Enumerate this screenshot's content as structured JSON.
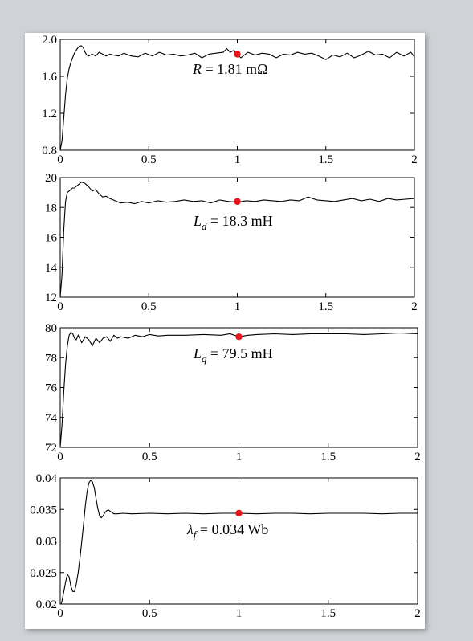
{
  "chart_data": [
    {
      "type": "line",
      "xlim": [
        0,
        2
      ],
      "ylim": [
        0.8,
        2.0
      ],
      "xticks": [
        "0",
        "0.5",
        "1",
        "1.5",
        "2"
      ],
      "yticks": [
        "0.8",
        "1.2",
        "1.6",
        "2.0"
      ],
      "yticks_values": [
        0.8,
        1.2,
        1.6,
        2.0
      ],
      "annotation": {
        "symbol": "R",
        "subscript": "",
        "text": " = 1.81 mΩ"
      },
      "marker": {
        "x": 1.0,
        "y": 1.84
      },
      "series_color": "#000000",
      "marker_color": "#e8141a",
      "series": [
        {
          "x": [
            0,
            0.01,
            0.02,
            0.03,
            0.04,
            0.05,
            0.06,
            0.07,
            0.08,
            0.09,
            0.1,
            0.11,
            0.12,
            0.13,
            0.14,
            0.15,
            0.16,
            0.18,
            0.2,
            0.22,
            0.24,
            0.26,
            0.28,
            0.3,
            0.33,
            0.36,
            0.4,
            0.44,
            0.48,
            0.52,
            0.56,
            0.6,
            0.64,
            0.68,
            0.72,
            0.76,
            0.8,
            0.84,
            0.88,
            0.92,
            0.94,
            0.96,
            0.98,
            1.0,
            1.02,
            1.04,
            1.06,
            1.1,
            1.14,
            1.18,
            1.22,
            1.26,
            1.3,
            1.34,
            1.38,
            1.42,
            1.46,
            1.5,
            1.54,
            1.58,
            1.62,
            1.66,
            1.7,
            1.74,
            1.78,
            1.82,
            1.86,
            1.9,
            1.94,
            1.98,
            2.0
          ],
          "y": [
            0.8,
            0.9,
            1.15,
            1.4,
            1.58,
            1.68,
            1.75,
            1.8,
            1.85,
            1.88,
            1.91,
            1.93,
            1.93,
            1.91,
            1.86,
            1.83,
            1.82,
            1.84,
            1.82,
            1.86,
            1.84,
            1.82,
            1.84,
            1.83,
            1.82,
            1.85,
            1.82,
            1.81,
            1.85,
            1.82,
            1.86,
            1.83,
            1.84,
            1.82,
            1.83,
            1.85,
            1.8,
            1.84,
            1.85,
            1.86,
            1.9,
            1.86,
            1.88,
            1.84,
            1.8,
            1.83,
            1.86,
            1.83,
            1.85,
            1.84,
            1.8,
            1.84,
            1.83,
            1.86,
            1.84,
            1.85,
            1.82,
            1.78,
            1.83,
            1.81,
            1.85,
            1.8,
            1.83,
            1.87,
            1.83,
            1.84,
            1.8,
            1.86,
            1.82,
            1.86,
            1.81
          ]
        }
      ]
    },
    {
      "type": "line",
      "xlim": [
        0,
        2
      ],
      "ylim": [
        12,
        20
      ],
      "xticks": [
        "0",
        "0.5",
        "1",
        "1.5",
        "2"
      ],
      "yticks": [
        "12",
        "14",
        "16",
        "18",
        "20"
      ],
      "yticks_values": [
        12,
        14,
        16,
        18,
        20
      ],
      "annotation": {
        "symbol": "L",
        "subscript": "d",
        "text": " = 18.3 mH"
      },
      "marker": {
        "x": 1.0,
        "y": 18.4
      },
      "series_color": "#000000",
      "marker_color": "#e8141a",
      "series": [
        {
          "x": [
            0,
            0.01,
            0.02,
            0.03,
            0.04,
            0.05,
            0.06,
            0.07,
            0.08,
            0.1,
            0.12,
            0.13,
            0.14,
            0.16,
            0.18,
            0.2,
            0.22,
            0.24,
            0.26,
            0.28,
            0.3,
            0.34,
            0.38,
            0.42,
            0.46,
            0.5,
            0.55,
            0.6,
            0.65,
            0.7,
            0.75,
            0.8,
            0.85,
            0.9,
            0.95,
            1.0,
            1.05,
            1.1,
            1.15,
            1.2,
            1.25,
            1.3,
            1.35,
            1.4,
            1.45,
            1.5,
            1.55,
            1.6,
            1.65,
            1.7,
            1.75,
            1.8,
            1.85,
            1.9,
            1.95,
            2.0
          ],
          "y": [
            12,
            13.5,
            16.5,
            18.4,
            19.0,
            19.1,
            19.2,
            19.3,
            19.3,
            19.5,
            19.7,
            19.65,
            19.6,
            19.4,
            19.1,
            19.2,
            18.9,
            18.7,
            18.75,
            18.6,
            18.5,
            18.3,
            18.35,
            18.25,
            18.4,
            18.3,
            18.45,
            18.35,
            18.4,
            18.5,
            18.4,
            18.45,
            18.3,
            18.5,
            18.4,
            18.35,
            18.45,
            18.4,
            18.5,
            18.45,
            18.4,
            18.5,
            18.45,
            18.7,
            18.5,
            18.45,
            18.4,
            18.5,
            18.6,
            18.45,
            18.55,
            18.4,
            18.6,
            18.5,
            18.55,
            18.6
          ]
        }
      ]
    },
    {
      "type": "line",
      "xlim": [
        0,
        2
      ],
      "ylim": [
        72,
        80
      ],
      "xticks": [
        "0",
        "0.5",
        "1",
        "1.5",
        "2"
      ],
      "yticks": [
        "72",
        "74",
        "76",
        "78",
        "80"
      ],
      "yticks_values": [
        72,
        74,
        76,
        78,
        80
      ],
      "annotation": {
        "symbol": "L",
        "subscript": "q",
        "text": " = 79.5 mH"
      },
      "marker": {
        "x": 1.0,
        "y": 79.4
      },
      "series_color": "#000000",
      "marker_color": "#e8141a",
      "series": [
        {
          "x": [
            0,
            0.01,
            0.02,
            0.03,
            0.04,
            0.05,
            0.06,
            0.07,
            0.08,
            0.09,
            0.1,
            0.12,
            0.14,
            0.16,
            0.18,
            0.2,
            0.22,
            0.24,
            0.26,
            0.28,
            0.3,
            0.32,
            0.34,
            0.38,
            0.42,
            0.46,
            0.5,
            0.55,
            0.6,
            0.7,
            0.8,
            0.9,
            0.95,
            1.0,
            1.05,
            1.1,
            1.2,
            1.3,
            1.4,
            1.5,
            1.6,
            1.7,
            1.8,
            1.9,
            2.0
          ],
          "y": [
            72,
            73.5,
            75.8,
            77.6,
            78.8,
            79.5,
            79.7,
            79.6,
            79.3,
            79.2,
            79.5,
            79.0,
            79.4,
            79.2,
            78.8,
            79.3,
            79.0,
            79.3,
            79.4,
            79.1,
            79.5,
            79.3,
            79.4,
            79.3,
            79.5,
            79.4,
            79.55,
            79.45,
            79.5,
            79.5,
            79.55,
            79.5,
            79.6,
            79.4,
            79.5,
            79.55,
            79.6,
            79.55,
            79.6,
            79.6,
            79.6,
            79.55,
            79.6,
            79.65,
            79.6
          ]
        }
      ]
    },
    {
      "type": "line",
      "xlim": [
        0,
        2
      ],
      "ylim": [
        0.02,
        0.04
      ],
      "xticks": [
        "0",
        "0.5",
        "1",
        "1.5",
        "2"
      ],
      "yticks": [
        "0.02",
        "0.025",
        "0.03",
        "0.035",
        "0.04"
      ],
      "yticks_values": [
        0.02,
        0.025,
        0.03,
        0.035,
        0.04
      ],
      "annotation": {
        "symbol": "λ",
        "subscript": "f",
        "text": " = 0.034 Wb"
      },
      "marker": {
        "x": 1.0,
        "y": 0.0344
      },
      "series_color": "#000000",
      "marker_color": "#e8141a",
      "series": [
        {
          "x": [
            0,
            0.01,
            0.02,
            0.03,
            0.04,
            0.05,
            0.06,
            0.07,
            0.08,
            0.09,
            0.1,
            0.11,
            0.12,
            0.13,
            0.14,
            0.15,
            0.16,
            0.17,
            0.18,
            0.19,
            0.2,
            0.21,
            0.22,
            0.23,
            0.24,
            0.25,
            0.26,
            0.27,
            0.28,
            0.3,
            0.32,
            0.35,
            0.4,
            0.5,
            0.6,
            0.7,
            0.8,
            0.9,
            1.0,
            1.1,
            1.2,
            1.3,
            1.4,
            1.5,
            1.6,
            1.7,
            1.8,
            1.9,
            2.0
          ],
          "y": [
            0.0195,
            0.0205,
            0.022,
            0.0235,
            0.0247,
            0.0243,
            0.0228,
            0.022,
            0.022,
            0.0232,
            0.025,
            0.0272,
            0.0298,
            0.0325,
            0.0355,
            0.0378,
            0.0392,
            0.0396,
            0.0394,
            0.0385,
            0.0368,
            0.0352,
            0.034,
            0.0337,
            0.034,
            0.0345,
            0.0348,
            0.0349,
            0.0347,
            0.0343,
            0.0343,
            0.0344,
            0.0343,
            0.0344,
            0.0343,
            0.0344,
            0.0343,
            0.0344,
            0.0344,
            0.0343,
            0.0344,
            0.0344,
            0.0343,
            0.0344,
            0.0344,
            0.0344,
            0.0343,
            0.0344,
            0.0344
          ]
        }
      ]
    }
  ]
}
